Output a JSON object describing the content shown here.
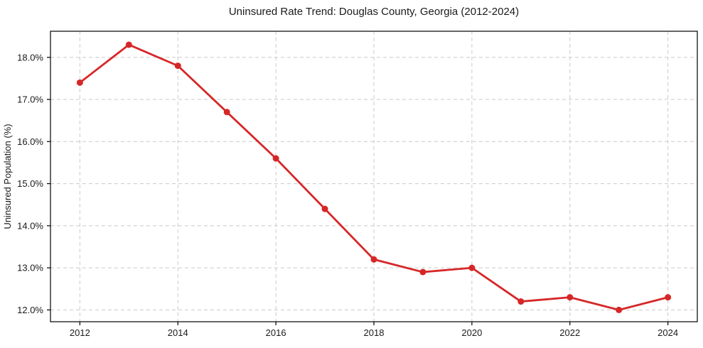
{
  "chart_data": {
    "type": "line",
    "title": "Uninsured Rate Trend: Douglas County, Georgia (2012-2024)",
    "xlabel": "",
    "ylabel": "Uninsured Population (%)",
    "x": [
      2012,
      2013,
      2014,
      2015,
      2016,
      2017,
      2018,
      2019,
      2020,
      2021,
      2022,
      2023,
      2024
    ],
    "values": [
      17.4,
      18.3,
      17.8,
      16.7,
      15.6,
      14.4,
      13.2,
      12.9,
      13.0,
      12.2,
      12.3,
      12.0,
      12.3
    ],
    "xlim": [
      2011.4,
      2024.6
    ],
    "ylim": [
      11.72,
      18.62
    ],
    "x_ticks": [
      2012,
      2014,
      2016,
      2018,
      2020,
      2022,
      2024
    ],
    "x_tick_labels": [
      "2012",
      "2014",
      "2016",
      "2018",
      "2020",
      "2022",
      "2024"
    ],
    "y_ticks": [
      12,
      13,
      14,
      15,
      16,
      17,
      18
    ],
    "y_tick_labels": [
      "12.0%",
      "13.0%",
      "14.0%",
      "15.0%",
      "16.0%",
      "17.0%",
      "18.0%"
    ],
    "grid": true,
    "legend_position": "none",
    "line_color": "#d62728",
    "marker": "circle",
    "grid_color": "#c9c9c9",
    "frame_color": "#000000",
    "text_color": "#1a1a1a",
    "background_color": "#ffffff"
  }
}
